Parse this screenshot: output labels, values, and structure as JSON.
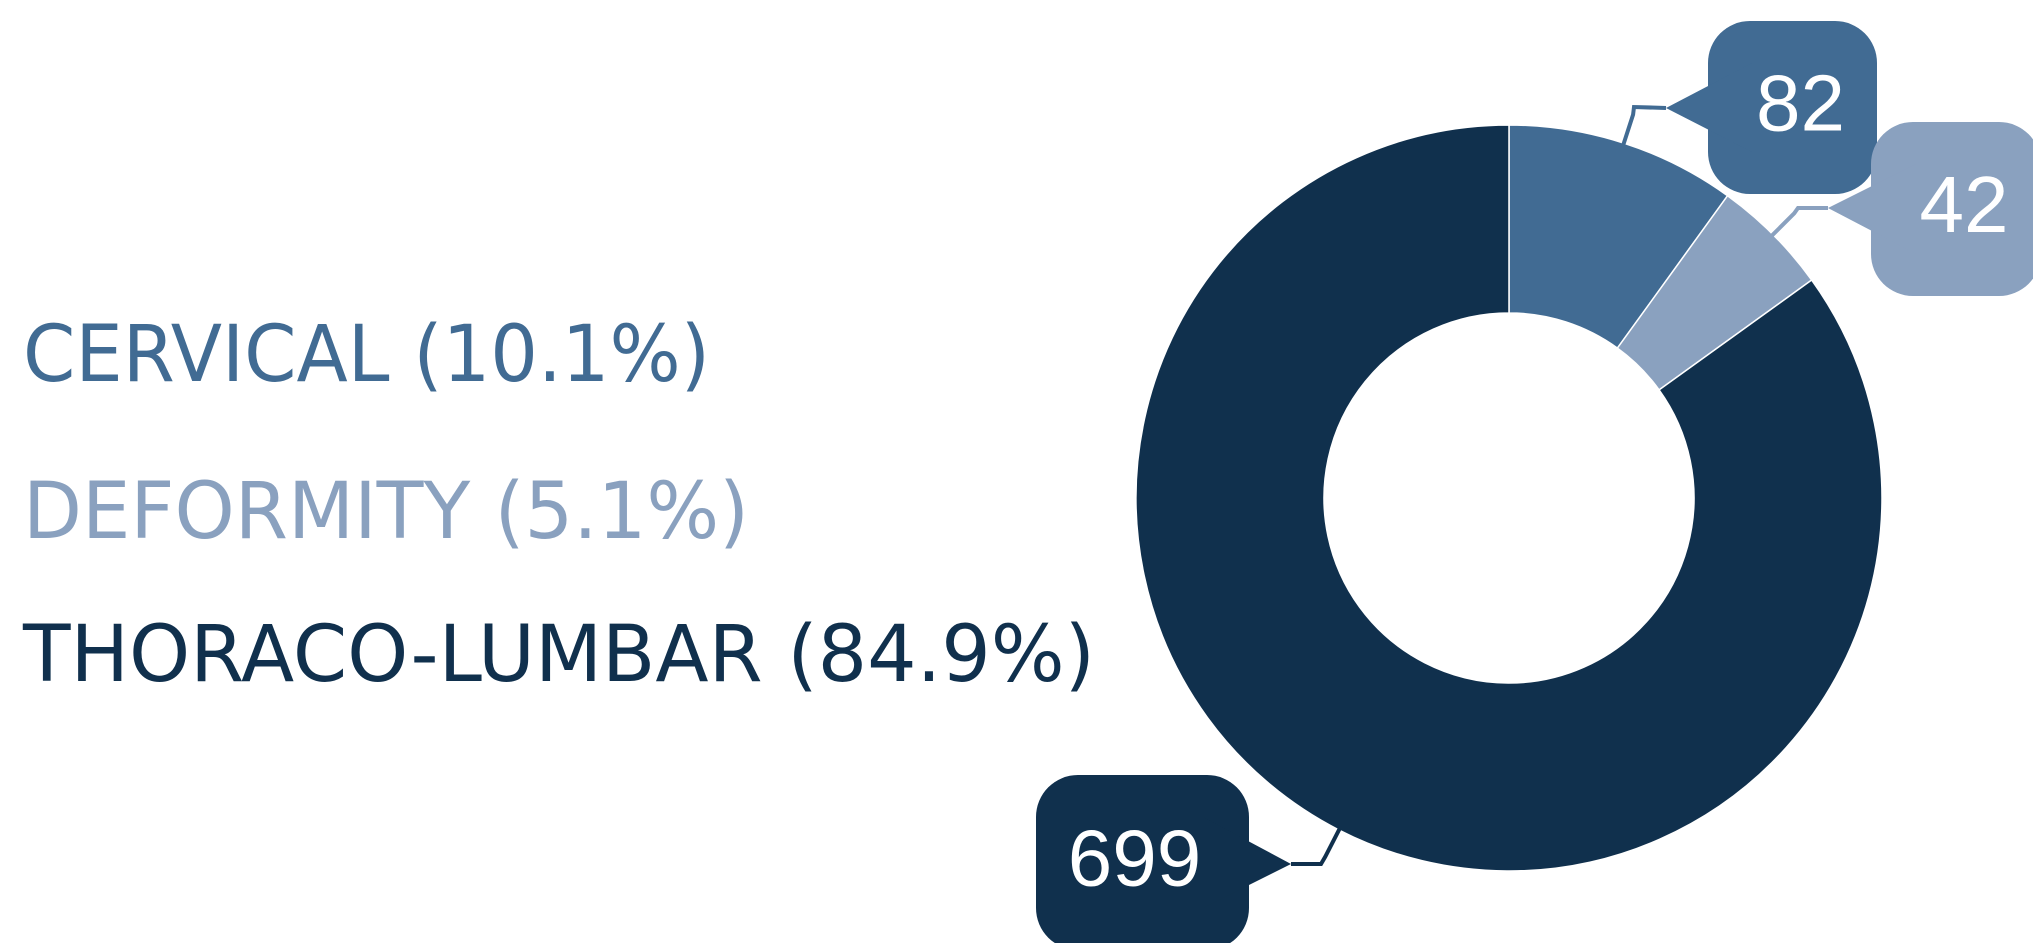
{
  "chart_data": {
    "type": "donut",
    "categories": [
      "CERVICAL (10.1%)",
      "DEFORMITY (5.1%)",
      "THORACO-LUMBAR (84.9%)"
    ],
    "values": [
      82,
      42,
      699
    ],
    "colors": [
      "#416b93",
      "#8aa1bf",
      "#10304d"
    ]
  }
}
